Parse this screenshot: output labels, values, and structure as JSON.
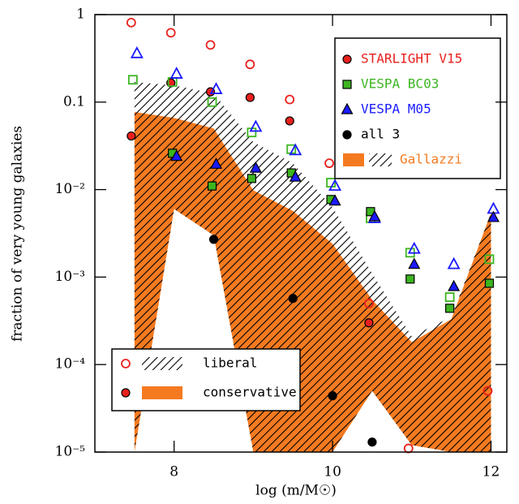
{
  "chart_data": {
    "type": "scatter",
    "x_label": "log (m/M☉)",
    "y_label": "fraction of very young galaxies",
    "log_y": true,
    "xlim": [
      7,
      12.2
    ],
    "ylim": [
      1e-05,
      1
    ],
    "xticks": [
      8,
      10,
      12
    ],
    "yticks": [
      1,
      0.1,
      {
        "value": 0.01,
        "label": "10⁻²"
      },
      {
        "value": 0.001,
        "label": "10⁻³"
      },
      {
        "value": 0.0001,
        "label": "10⁻⁴"
      },
      {
        "value": 1e-05,
        "label": "10⁻⁵"
      }
    ],
    "x": [
      7.5,
      8,
      8.5,
      9,
      9.5,
      10,
      10.5,
      11,
      11.5,
      12
    ],
    "styles": [
      "liberal",
      "conservative"
    ],
    "series": [
      {
        "name": "STARLIGHT V15",
        "color": "#e8201c",
        "marker": "circle",
        "liberal": [
          0.81,
          0.62,
          0.45,
          0.27,
          0.107,
          0.02,
          0.0005,
          1.1e-05,
          null,
          5e-05
        ],
        "conservative": [
          0.041,
          0.166,
          0.131,
          0.113,
          0.061,
          null,
          0.0003,
          null,
          null,
          null
        ]
      },
      {
        "name": "VESPA BC03",
        "color": "#3cb520",
        "marker": "square",
        "liberal": [
          0.18,
          0.17,
          0.1,
          0.045,
          0.029,
          0.012,
          0.0047,
          0.0019,
          0.00059,
          0.0016
        ],
        "conservative": [
          null,
          0.026,
          0.011,
          0.0134,
          0.0155,
          0.0077,
          0.0056,
          0.00095,
          0.00044,
          0.00085
        ]
      },
      {
        "name": "VESPA M05",
        "color": "#1a1aff",
        "marker": "triangle",
        "liberal": [
          0.36,
          0.21,
          0.14,
          0.052,
          0.028,
          0.011,
          0.0047,
          0.0021,
          0.0014,
          0.006
        ],
        "conservative": [
          null,
          0.024,
          0.0195,
          0.0176,
          0.0139,
          0.0074,
          0.0049,
          0.0014,
          0.00078,
          0.0048
        ]
      },
      {
        "name": "all 3",
        "color": "#000000",
        "marker": "circle",
        "conservative": [
          null,
          null,
          0.0027,
          null,
          0.00057,
          4.4e-05,
          1.3e-05,
          null,
          null,
          null
        ]
      }
    ],
    "bands": {
      "name": "Gallazzi",
      "color": "#f47a20",
      "x": [
        7.5,
        8,
        8.5,
        9,
        9.5,
        10,
        10.5,
        11,
        11.5,
        12
      ],
      "liberal_upper": [
        0.17,
        0.155,
        0.126,
        0.035,
        0.02,
        0.0063,
        0.0011,
        0.00021,
        0.00035,
        0.0054
      ],
      "conservative_upper": [
        0.077,
        0.066,
        0.05,
        0.0098,
        0.0057,
        0.0024,
        0.00055,
        0.00018,
        0.00033,
        0.0054
      ],
      "lower": [
        1e-05,
        0.006,
        0.003,
        1e-05,
        1e-05,
        1e-05,
        5e-05,
        1.2e-05,
        1e-05,
        1e-05
      ]
    }
  }
}
